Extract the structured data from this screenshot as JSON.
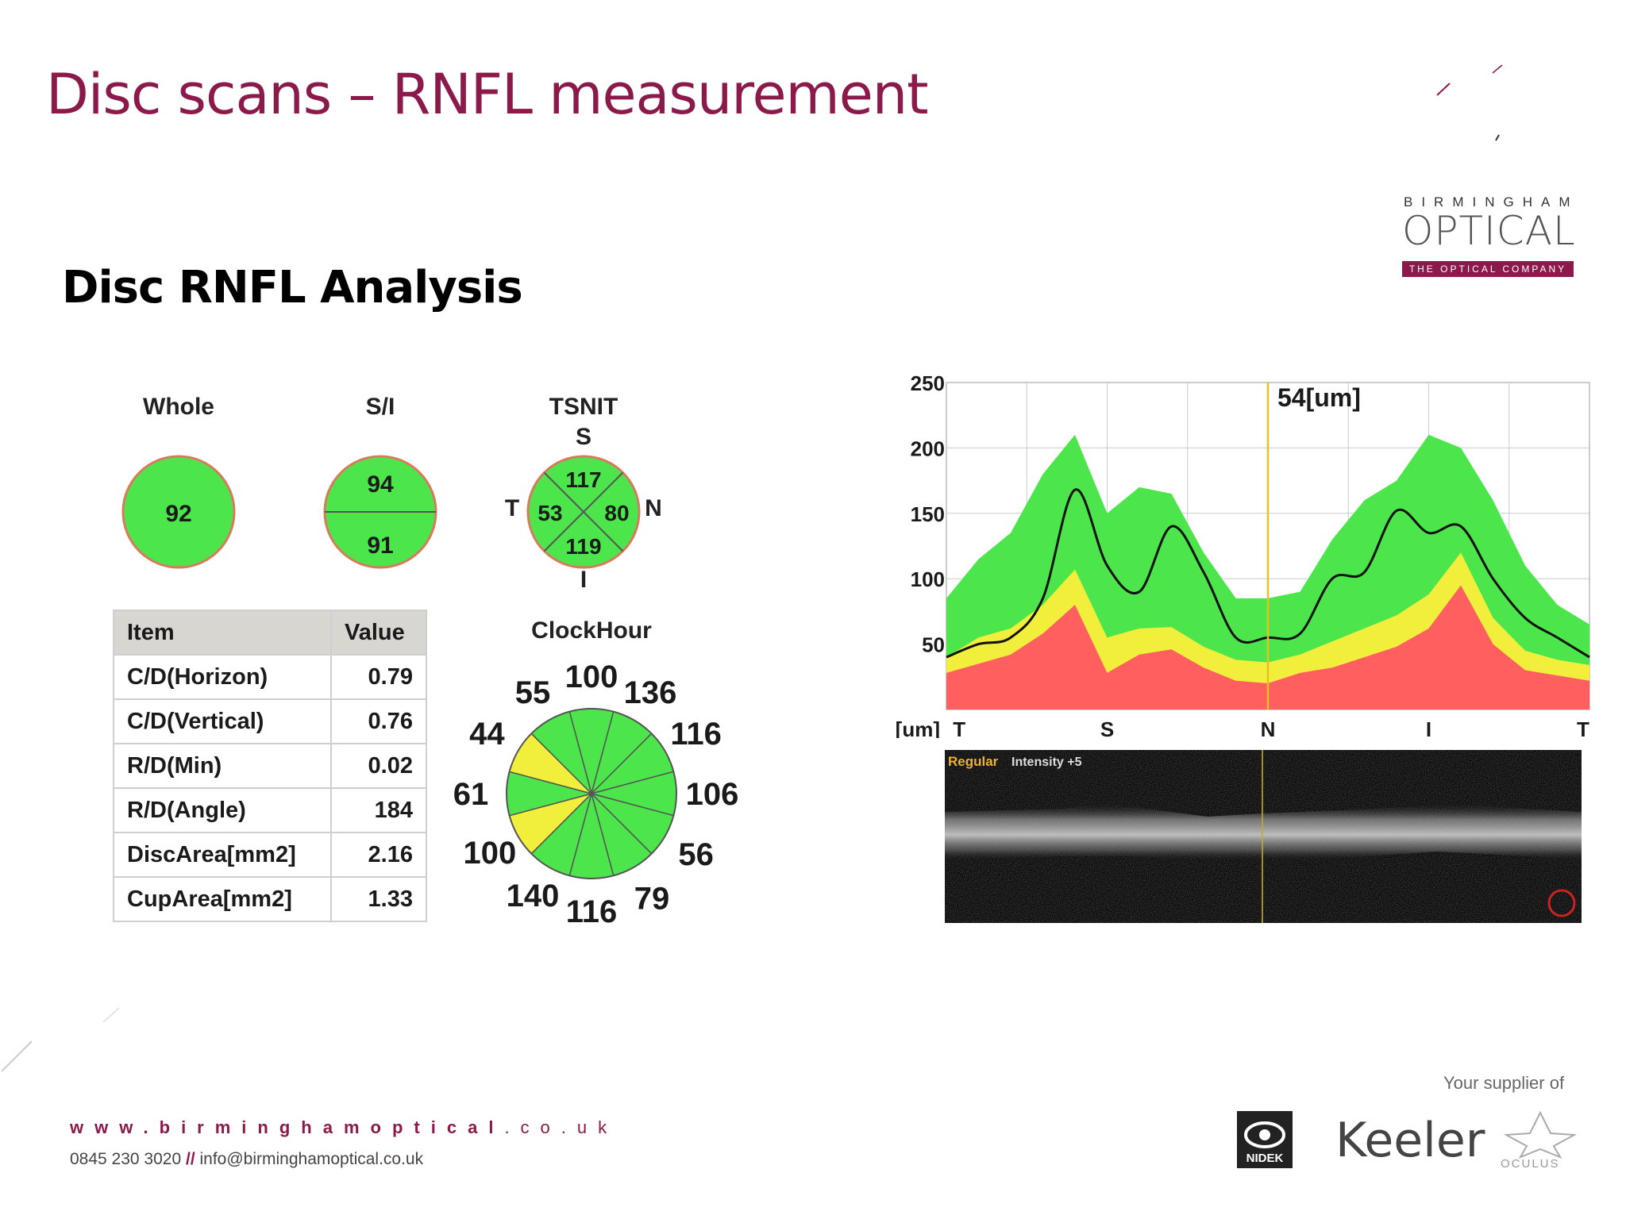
{
  "title": "Disc scans – RNFL measurement",
  "heading": "Disc RNFL Analysis",
  "logo": {
    "line1": "BIRMINGHAM",
    "line2": "OPTICAL",
    "tagline": "THE OPTICAL COMPANY"
  },
  "whole": {
    "label": "Whole",
    "value": "92"
  },
  "si": {
    "label": "S/I",
    "superior": "94",
    "inferior": "91"
  },
  "tsnit": {
    "label": "TSNIT",
    "s_label": "S",
    "t_label": "T",
    "n_label": "N",
    "i_label": "I",
    "s": "117",
    "t": "53",
    "n": "80",
    "i": "119"
  },
  "table": {
    "col_item": "Item",
    "col_value": "Value",
    "rows": [
      {
        "item": "C/D(Horizon)",
        "value": "0.79"
      },
      {
        "item": "C/D(Vertical)",
        "value": "0.76"
      },
      {
        "item": "R/D(Min)",
        "value": "0.02"
      },
      {
        "item": "R/D(Angle)",
        "value": "184"
      },
      {
        "item": "DiscArea[mm2]",
        "value": "2.16"
      },
      {
        "item": "CupArea[mm2]",
        "value": "1.33"
      }
    ]
  },
  "clockhour": {
    "label": "ClockHour",
    "values": [
      "136",
      "116",
      "106",
      "56",
      "79",
      "116",
      "140",
      "100",
      "61",
      "44",
      "55",
      "100"
    ],
    "yellow_sectors": [
      10,
      8
    ]
  },
  "chart_data": {
    "type": "area",
    "title": "",
    "marker_label": "54[um]",
    "marker_position_fraction": 0.5,
    "ylabel": "[um]",
    "ylim": [
      0,
      250
    ],
    "yticks": [
      "250",
      "200",
      "150",
      "100",
      "50"
    ],
    "xticks": [
      "T",
      "S",
      "N",
      "I",
      "T"
    ],
    "grid": true,
    "x": [
      0,
      0.05,
      0.1,
      0.15,
      0.2,
      0.25,
      0.3,
      0.35,
      0.4,
      0.45,
      0.5,
      0.55,
      0.6,
      0.65,
      0.7,
      0.75,
      0.8,
      0.85,
      0.9,
      0.95,
      1
    ],
    "series": [
      {
        "name": "normal-upper",
        "color": "#4ce64c",
        "values": [
          85,
          115,
          135,
          180,
          210,
          150,
          170,
          165,
          120,
          85,
          85,
          90,
          130,
          160,
          175,
          210,
          200,
          160,
          110,
          80,
          65
        ]
      },
      {
        "name": "borderline-upper",
        "color": "#f2ee3c",
        "values": [
          40,
          55,
          62,
          80,
          107,
          55,
          62,
          63,
          48,
          38,
          36,
          42,
          52,
          62,
          72,
          88,
          120,
          70,
          45,
          38,
          34
        ]
      },
      {
        "name": "lower-limit",
        "color": "#ff5f5f",
        "values": [
          28,
          35,
          42,
          58,
          80,
          28,
          42,
          46,
          32,
          22,
          20,
          28,
          32,
          40,
          48,
          62,
          95,
          50,
          30,
          26,
          22
        ]
      },
      {
        "name": "patient",
        "color": "#111111",
        "values": [
          40,
          50,
          55,
          85,
          168,
          110,
          90,
          140,
          105,
          55,
          55,
          58,
          100,
          105,
          152,
          135,
          140,
          100,
          70,
          55,
          40
        ]
      }
    ],
    "bscan_label_regular": "Regular",
    "bscan_label_intensity": "Intensity +5"
  },
  "footer": {
    "url_main": "www.birminghamoptical",
    "url_tld": ".co.uk",
    "phone": "0845 230 3020",
    "separator": "//",
    "email": "info@birminghamoptical.co.uk",
    "supplier": "Your supplier of",
    "brand_nidek": "NIDEK",
    "brand_keeler": "Keeler",
    "brand_oculus": "OCULUS"
  },
  "colors": {
    "accent": "#8b1a4a",
    "normal": "#4ce64c",
    "borderline": "#f2ee3c",
    "abnormal": "#ff5f5f"
  }
}
